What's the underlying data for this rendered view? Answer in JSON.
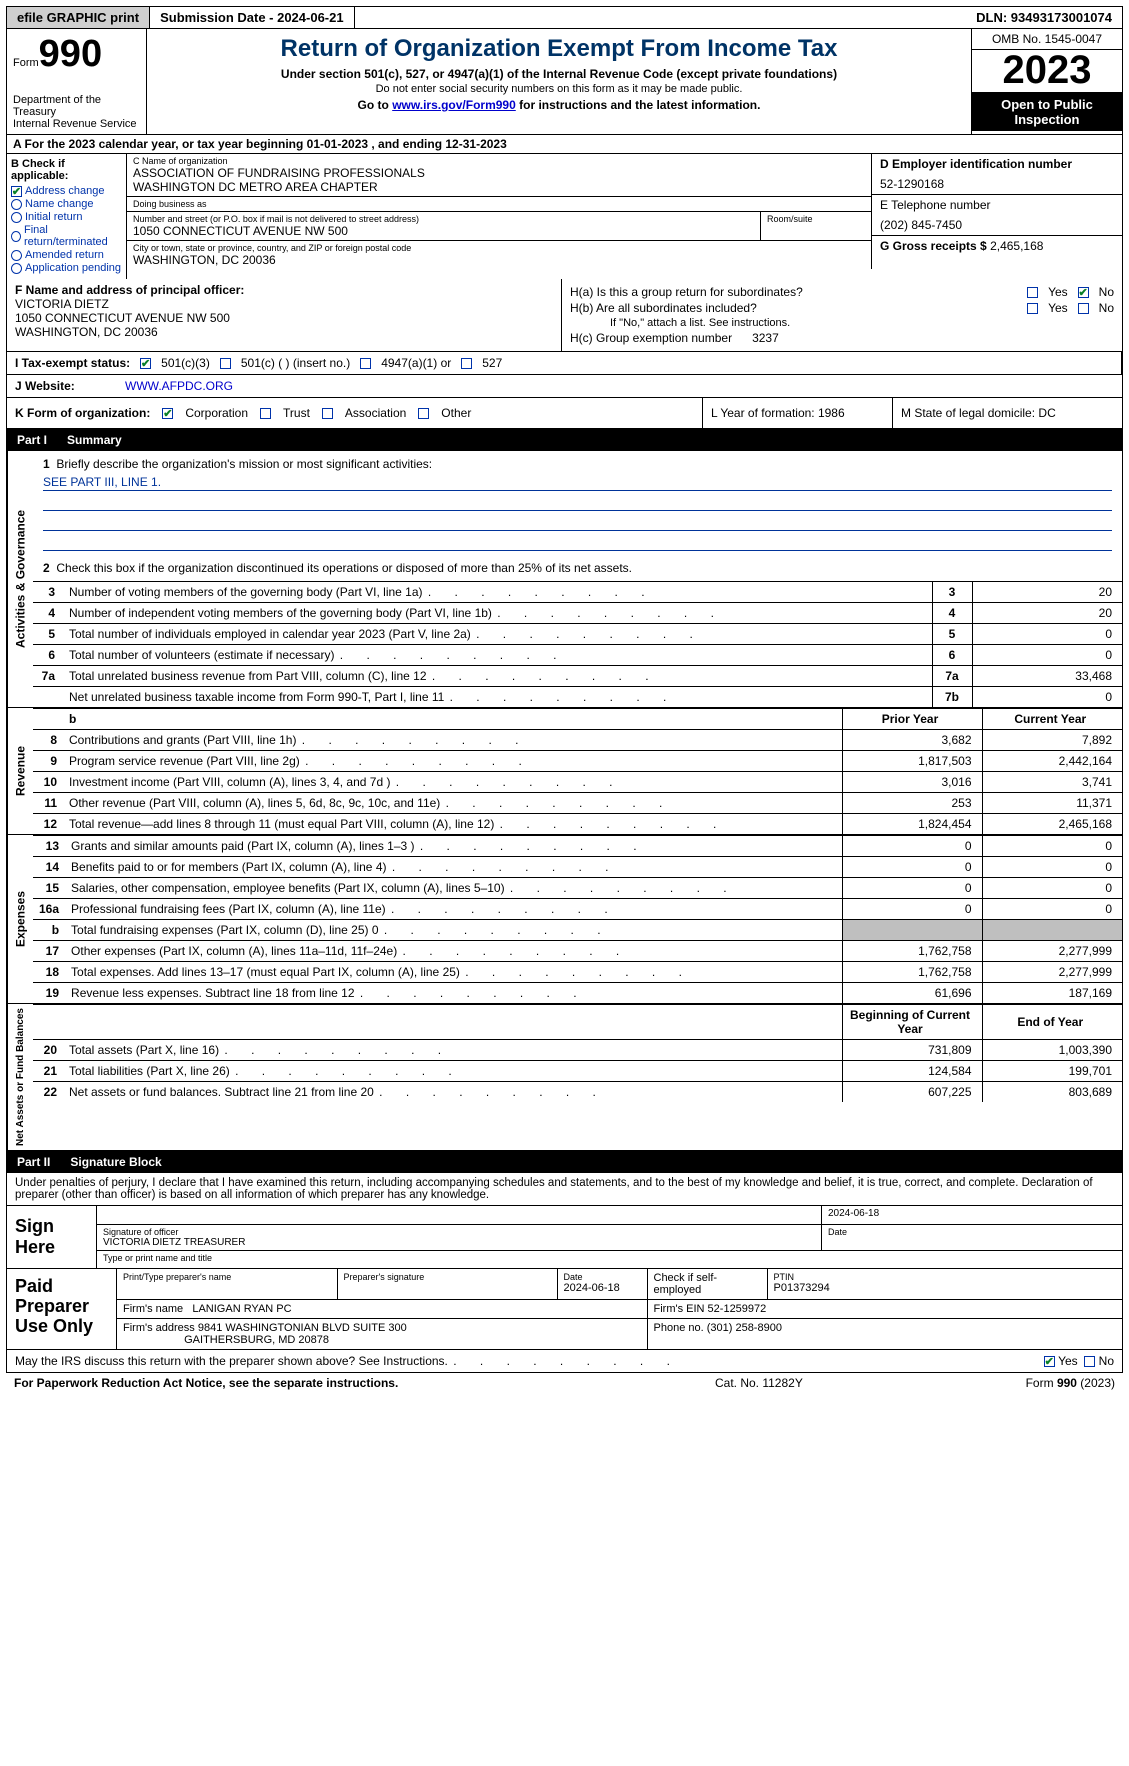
{
  "topbar": {
    "efile": "efile GRAPHIC print",
    "submission": "Submission Date - 2024-06-21",
    "dln": "DLN: 93493173001074"
  },
  "header": {
    "form_word": "Form",
    "form_no": "990",
    "dept": "Department of the Treasury",
    "irs": "Internal Revenue Service",
    "title": "Return of Organization Exempt From Income Tax",
    "sub1": "Under section 501(c), 527, or 4947(a)(1) of the Internal Revenue Code (except private foundations)",
    "sub2": "Do not enter social security numbers on this form as it may be made public.",
    "sub3_pre": "Go to ",
    "sub3_link": "www.irs.gov/Form990",
    "sub3_post": " for instructions and the latest information.",
    "omb": "OMB No. 1545-0047",
    "year": "2023",
    "inspection": "Open to Public Inspection"
  },
  "row_a": "A  For the 2023 calendar year, or tax year beginning 01-01-2023    , and ending 12-31-2023",
  "box_b": {
    "title": "B Check if applicable:",
    "items": [
      "Address change",
      "Name change",
      "Initial return",
      "Final return/terminated",
      "Amended return",
      "Application pending"
    ]
  },
  "box_c": {
    "name_label": "C Name of organization",
    "name_line1": "ASSOCIATION OF FUNDRAISING PROFESSIONALS",
    "name_line2": "WASHINGTON DC METRO AREA CHAPTER",
    "dba_label": "Doing business as",
    "dba": "",
    "street_label": "Number and street (or P.O. box if mail is not delivered to street address)",
    "street": "1050 CONNECTICUT AVENUE NW 500",
    "room_label": "Room/suite",
    "room": "",
    "city_label": "City or town, state or province, country, and ZIP or foreign postal code",
    "city": "WASHINGTON, DC  20036"
  },
  "box_d": {
    "ein_label": "D Employer identification number",
    "ein": "52-1290168",
    "tel_label": "E Telephone number",
    "tel": "(202) 845-7450",
    "gross_label": "G Gross receipts $",
    "gross": "2,465,168"
  },
  "box_f": {
    "label": "F  Name and address of principal officer:",
    "name": "VICTORIA DIETZ",
    "addr1": "1050 CONNECTICUT AVENUE NW 500",
    "addr2": "WASHINGTON, DC  20036"
  },
  "box_h": {
    "a": "H(a)  Is this a group return for subordinates?",
    "b": "H(b)  Are all subordinates included?",
    "b_note": "If \"No,\" attach a list. See instructions.",
    "c_label": "H(c)  Group exemption number",
    "c_val": "3237",
    "yes": "Yes",
    "no": "No"
  },
  "row_i": {
    "label": "I    Tax-exempt status:",
    "o1": "501(c)(3)",
    "o2": "501(c) (   ) (insert no.)",
    "o3": "4947(a)(1) or",
    "o4": "527"
  },
  "row_j": {
    "label": "J    Website:",
    "val": "WWW.AFPDC.ORG"
  },
  "row_k": {
    "label": "K Form of organization:",
    "o1": "Corporation",
    "o2": "Trust",
    "o3": "Association",
    "o4": "Other",
    "l": "L Year of formation: 1986",
    "m": "M State of legal domicile: DC"
  },
  "part1": {
    "num": "Part I",
    "title": "Summary"
  },
  "summary": {
    "gov_label": "Activities & Governance",
    "line1_label": "Briefly describe the organization's mission or most significant activities:",
    "line1_val": "SEE PART III, LINE 1.",
    "line2": "Check this box      if the organization discontinued its operations or disposed of more than 25% of its net assets.",
    "rows": [
      {
        "n": "3",
        "d": "Number of voting members of the governing body (Part VI, line 1a)",
        "c": "3",
        "v": "20"
      },
      {
        "n": "4",
        "d": "Number of independent voting members of the governing body (Part VI, line 1b)",
        "c": "4",
        "v": "20"
      },
      {
        "n": "5",
        "d": "Total number of individuals employed in calendar year 2023 (Part V, line 2a)",
        "c": "5",
        "v": "0"
      },
      {
        "n": "6",
        "d": "Total number of volunteers (estimate if necessary)",
        "c": "6",
        "v": "0"
      },
      {
        "n": "7a",
        "d": "Total unrelated business revenue from Part VIII, column (C), line 12",
        "c": "7a",
        "v": "33,468"
      },
      {
        "n": "",
        "d": "Net unrelated business taxable income from Form 990-T, Part I, line 11",
        "c": "7b",
        "v": "0"
      }
    ]
  },
  "revenue": {
    "label": "Revenue",
    "hdr_b": "b",
    "hdr_prior": "Prior Year",
    "hdr_curr": "Current Year",
    "rows": [
      {
        "n": "8",
        "d": "Contributions and grants (Part VIII, line 1h)",
        "p": "3,682",
        "c": "7,892"
      },
      {
        "n": "9",
        "d": "Program service revenue (Part VIII, line 2g)",
        "p": "1,817,503",
        "c": "2,442,164"
      },
      {
        "n": "10",
        "d": "Investment income (Part VIII, column (A), lines 3, 4, and 7d )",
        "p": "3,016",
        "c": "3,741"
      },
      {
        "n": "11",
        "d": "Other revenue (Part VIII, column (A), lines 5, 6d, 8c, 9c, 10c, and 11e)",
        "p": "253",
        "c": "11,371"
      },
      {
        "n": "12",
        "d": "Total revenue—add lines 8 through 11 (must equal Part VIII, column (A), line 12)",
        "p": "1,824,454",
        "c": "2,465,168"
      }
    ]
  },
  "expenses": {
    "label": "Expenses",
    "rows": [
      {
        "n": "13",
        "d": "Grants and similar amounts paid (Part IX, column (A), lines 1–3 )",
        "p": "0",
        "c": "0"
      },
      {
        "n": "14",
        "d": "Benefits paid to or for members (Part IX, column (A), line 4)",
        "p": "0",
        "c": "0"
      },
      {
        "n": "15",
        "d": "Salaries, other compensation, employee benefits (Part IX, column (A), lines 5–10)",
        "p": "0",
        "c": "0"
      },
      {
        "n": "16a",
        "d": "Professional fundraising fees (Part IX, column (A), line 11e)",
        "p": "0",
        "c": "0"
      },
      {
        "n": "b",
        "d": "Total fundraising expenses (Part IX, column (D), line 25) 0",
        "p": "shaded",
        "c": "shaded"
      },
      {
        "n": "17",
        "d": "Other expenses (Part IX, column (A), lines 11a–11d, 11f–24e)",
        "p": "1,762,758",
        "c": "2,277,999"
      },
      {
        "n": "18",
        "d": "Total expenses. Add lines 13–17 (must equal Part IX, column (A), line 25)",
        "p": "1,762,758",
        "c": "2,277,999"
      },
      {
        "n": "19",
        "d": "Revenue less expenses. Subtract line 18 from line 12",
        "p": "61,696",
        "c": "187,169"
      }
    ]
  },
  "netassets": {
    "label": "Net Assets or Fund Balances",
    "hdr_beg": "Beginning of Current Year",
    "hdr_end": "End of Year",
    "rows": [
      {
        "n": "20",
        "d": "Total assets (Part X, line 16)",
        "p": "731,809",
        "c": "1,003,390"
      },
      {
        "n": "21",
        "d": "Total liabilities (Part X, line 26)",
        "p": "124,584",
        "c": "199,701"
      },
      {
        "n": "22",
        "d": "Net assets or fund balances. Subtract line 21 from line 20",
        "p": "607,225",
        "c": "803,689"
      }
    ]
  },
  "part2": {
    "num": "Part II",
    "title": "Signature Block"
  },
  "sig_intro": "Under penalties of perjury, I declare that I have examined this return, including accompanying schedules and statements, and to the best of my knowledge and belief, it is true, correct, and complete. Declaration of preparer (other than officer) is based on all information of which preparer has any knowledge.",
  "sign": {
    "left": "Sign Here",
    "date": "2024-06-18",
    "sig_label": "Signature of officer",
    "name": "VICTORIA DIETZ  TREASURER",
    "name_label": "Type or print name and title",
    "date_label": "Date"
  },
  "prep": {
    "left": "Paid Preparer Use Only",
    "print_label": "Print/Type preparer's name",
    "print_val": "",
    "sig_label": "Preparer's signature",
    "date_label": "Date",
    "date_val": "2024-06-18",
    "self_label": "Check        if self-employed",
    "ptin_label": "PTIN",
    "ptin_val": "P01373294",
    "firm_name_label": "Firm's name",
    "firm_name": "LANIGAN RYAN PC",
    "firm_ein_label": "Firm's EIN",
    "firm_ein": "52-1259972",
    "firm_addr_label": "Firm's address",
    "firm_addr1": "9841 WASHINGTONIAN BLVD SUITE 300",
    "firm_addr2": "GAITHERSBURG, MD  20878",
    "phone_label": "Phone no.",
    "phone": "(301) 258-8900"
  },
  "discuss": {
    "txt": "May the IRS discuss this return with the preparer shown above? See Instructions.",
    "yes": "Yes",
    "no": "No"
  },
  "footer": {
    "l": "For Paperwork Reduction Act Notice, see the separate instructions.",
    "m": "Cat. No. 11282Y",
    "r_pre": "Form ",
    "r_b": "990",
    "r_post": " (2023)"
  }
}
